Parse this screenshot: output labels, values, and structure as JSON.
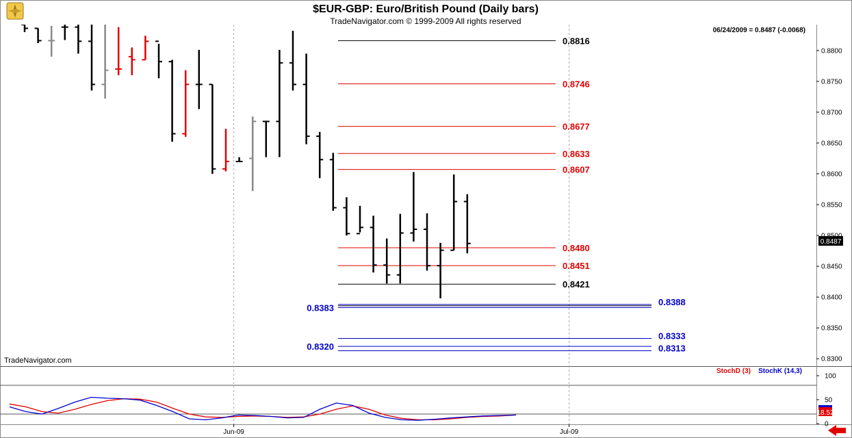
{
  "header": {
    "title": "$EUR-GBP:  Euro/British Pound  (Daily bars)",
    "subtitle": "TradeNavigator.com © 1999-2009 All rights reserved",
    "status": "06/24/2009 = 0.8487 (-0.0068)",
    "watermark": "TradeNavigator.com"
  },
  "colors": {
    "up": "#000000",
    "down_red": "#e00000",
    "down_gray": "#888888",
    "level_black": "#000000",
    "level_red": "#e00000",
    "level_blue": "#0000cc",
    "stoch_d": "#e00000",
    "stoch_k": "#0000cc"
  },
  "chart_data": [
    {
      "type": "bar",
      "series_kind": "ohlc",
      "title": "$EUR-GBP:  Euro/British Pound  (Daily bars)",
      "ylim": [
        0.8288,
        0.8842
      ],
      "y_ticks": [
        "0.8800",
        "0.8750",
        "0.8700",
        "0.8650",
        "0.8600",
        "0.8550",
        "0.8500",
        "0.8450",
        "0.8400",
        "0.8350",
        "0.8300"
      ],
      "x_ticks": [
        "Jun-09",
        "Jul-09"
      ],
      "x_tick_index": [
        16,
        41
      ],
      "last_price": "0.8487",
      "bars": [
        {
          "o": 0.8842,
          "h": 0.8842,
          "l": 0.883,
          "c": 0.8836,
          "color": "black"
        },
        {
          "o": 0.8836,
          "h": 0.8836,
          "l": 0.8812,
          "c": 0.8816,
          "color": "black"
        },
        {
          "o": 0.8816,
          "h": 0.884,
          "l": 0.879,
          "c": 0.8816,
          "color": "gray"
        },
        {
          "o": 0.8838,
          "h": 0.8842,
          "l": 0.8817,
          "c": 0.8838,
          "color": "black"
        },
        {
          "o": 0.8838,
          "h": 0.8842,
          "l": 0.8795,
          "c": 0.8815,
          "color": "black"
        },
        {
          "o": 0.8815,
          "h": 0.8842,
          "l": 0.8735,
          "c": 0.8745,
          "color": "black"
        },
        {
          "o": 0.8745,
          "h": 0.8842,
          "l": 0.8722,
          "c": 0.8768,
          "color": "gray"
        },
        {
          "o": 0.877,
          "h": 0.8838,
          "l": 0.876,
          "c": 0.877,
          "color": "red"
        },
        {
          "o": 0.879,
          "h": 0.8805,
          "l": 0.876,
          "c": 0.8785,
          "color": "red"
        },
        {
          "o": 0.8785,
          "h": 0.8824,
          "l": 0.8785,
          "c": 0.8815,
          "color": "red"
        },
        {
          "o": 0.8815,
          "h": 0.8811,
          "l": 0.8755,
          "c": 0.8782,
          "color": "black"
        },
        {
          "o": 0.8782,
          "h": 0.8785,
          "l": 0.8652,
          "c": 0.8665,
          "color": "black"
        },
        {
          "o": 0.8665,
          "h": 0.8768,
          "l": 0.866,
          "c": 0.8745,
          "color": "red"
        },
        {
          "o": 0.8745,
          "h": 0.8801,
          "l": 0.8705,
          "c": 0.8745,
          "color": "black"
        },
        {
          "o": 0.8745,
          "h": 0.8745,
          "l": 0.86,
          "c": 0.8608,
          "color": "black"
        },
        {
          "o": 0.8608,
          "h": 0.8673,
          "l": 0.8604,
          "c": 0.862,
          "color": "red"
        },
        {
          "o": 0.862,
          "h": 0.8627,
          "l": 0.862,
          "c": 0.862,
          "color": "black"
        },
        {
          "o": 0.8625,
          "h": 0.8693,
          "l": 0.8572,
          "c": 0.8685,
          "color": "gray"
        },
        {
          "o": 0.8685,
          "h": 0.8685,
          "l": 0.8627,
          "c": 0.8685,
          "color": "black"
        },
        {
          "o": 0.8685,
          "h": 0.8801,
          "l": 0.8627,
          "c": 0.878,
          "color": "black"
        },
        {
          "o": 0.878,
          "h": 0.8832,
          "l": 0.8735,
          "c": 0.8745,
          "color": "black"
        },
        {
          "o": 0.8745,
          "h": 0.8795,
          "l": 0.8648,
          "c": 0.8661,
          "color": "black"
        },
        {
          "o": 0.8661,
          "h": 0.8668,
          "l": 0.8593,
          "c": 0.8623,
          "color": "black"
        },
        {
          "o": 0.8623,
          "h": 0.8634,
          "l": 0.854,
          "c": 0.8545,
          "color": "black"
        },
        {
          "o": 0.8545,
          "h": 0.8562,
          "l": 0.85,
          "c": 0.8503,
          "color": "black"
        },
        {
          "o": 0.8503,
          "h": 0.8548,
          "l": 0.8505,
          "c": 0.8513,
          "color": "black"
        },
        {
          "o": 0.8513,
          "h": 0.8532,
          "l": 0.844,
          "c": 0.8452,
          "color": "black"
        },
        {
          "o": 0.8452,
          "h": 0.8495,
          "l": 0.8422,
          "c": 0.8436,
          "color": "black"
        },
        {
          "o": 0.8436,
          "h": 0.8535,
          "l": 0.8422,
          "c": 0.8504,
          "color": "black"
        },
        {
          "o": 0.8504,
          "h": 0.8603,
          "l": 0.849,
          "c": 0.851,
          "color": "black"
        },
        {
          "o": 0.851,
          "h": 0.8536,
          "l": 0.8443,
          "c": 0.8451,
          "color": "black"
        },
        {
          "o": 0.8451,
          "h": 0.8488,
          "l": 0.8398,
          "c": 0.8476,
          "color": "black"
        },
        {
          "o": 0.8476,
          "h": 0.8599,
          "l": 0.8476,
          "c": 0.8555,
          "color": "black"
        },
        {
          "o": 0.8555,
          "h": 0.8567,
          "l": 0.8471,
          "c": 0.8487,
          "color": "black"
        }
      ],
      "levels": [
        {
          "value": 0.8816,
          "label": "0.8816",
          "color": "black"
        },
        {
          "value": 0.8746,
          "label": "0.8746",
          "color": "red"
        },
        {
          "value": 0.8677,
          "label": "0.8677",
          "color": "red"
        },
        {
          "value": 0.8633,
          "label": "0.8633",
          "color": "red"
        },
        {
          "value": 0.8607,
          "label": "0.8607",
          "color": "red"
        },
        {
          "value": 0.848,
          "label": "0.8480",
          "color": "red"
        },
        {
          "value": 0.8451,
          "label": "0.8451",
          "color": "red"
        },
        {
          "value": 0.8421,
          "label": "0.8421",
          "color": "black"
        }
      ],
      "blue_levels": [
        {
          "value": 0.8388,
          "label": "0.8388",
          "side": "right"
        },
        {
          "value": 0.8383,
          "label": "0.8383",
          "side": "left"
        },
        {
          "value": 0.8333,
          "label": "0.8333",
          "side": "right"
        },
        {
          "value": 0.832,
          "label": "0.8320",
          "side": "left"
        },
        {
          "value": 0.8313,
          "label": "0.8313",
          "side": "right"
        }
      ]
    },
    {
      "type": "line",
      "ylim": [
        0,
        100
      ],
      "y_ticks": [
        "100",
        "50",
        "0"
      ],
      "y_tick_values": [
        100,
        50,
        0
      ],
      "ref_lines": [
        80,
        20
      ],
      "legend": [
        "StochD (3)",
        "StochK (14,3)"
      ],
      "last_value": "18.52",
      "series": [
        {
          "name": "StochD (3)",
          "color": "red",
          "values": [
            41,
            35,
            25,
            22,
            30,
            40,
            48,
            52,
            51,
            45,
            32,
            20,
            14,
            13,
            15,
            16,
            15,
            13,
            14,
            20,
            30,
            37,
            30,
            18,
            11,
            8,
            8,
            10,
            13,
            15,
            16,
            18
          ]
        },
        {
          "name": "StochK (14,3)",
          "color": "blue",
          "values": [
            35,
            25,
            20,
            32,
            45,
            55,
            53,
            52,
            49,
            38,
            25,
            10,
            8,
            12,
            18,
            17,
            15,
            12,
            13,
            30,
            43,
            38,
            22,
            13,
            8,
            7,
            9,
            12,
            14,
            16,
            17,
            18
          ]
        }
      ]
    }
  ]
}
